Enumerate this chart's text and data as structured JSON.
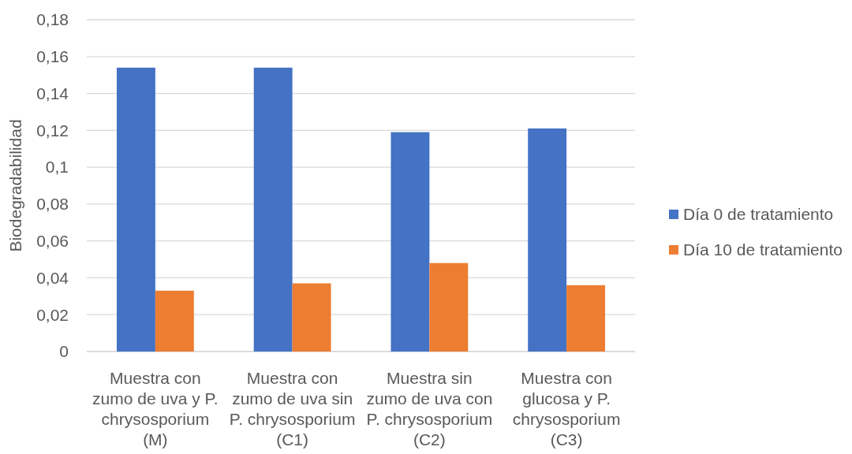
{
  "chart_data": {
    "type": "bar",
    "categories": [
      "Muestra con zumo de uva y P. chrysosporium (M)",
      "Muestra con zumo de uva sin P. chrysosporium (C1)",
      "Muestra sin zumo de uva con P. chrysosporium (C2)",
      "Muestra con glucosa y P. chrysosporium (C3)"
    ],
    "series": [
      {
        "name": "Día 0 de tratamiento",
        "color": "#4472c4",
        "values": [
          0.154,
          0.154,
          0.119,
          0.121
        ]
      },
      {
        "name": "Día 10 de tratamiento",
        "color": "#ed7d31",
        "values": [
          0.033,
          0.037,
          0.048,
          0.036
        ]
      }
    ],
    "ylabel": "Biodegradabilidad",
    "ylim": [
      0,
      0.18
    ],
    "yticks": [
      0,
      {
        "value": 0.02,
        "label": "0,02"
      },
      {
        "value": 0.04,
        "label": "0,04"
      },
      {
        "value": 0.06,
        "label": "0,06"
      },
      {
        "value": 0.08,
        "label": "0,08"
      },
      {
        "value": 0.1,
        "label": "0,1"
      },
      {
        "value": 0.12,
        "label": "0,12"
      },
      {
        "value": 0.14,
        "label": "0,14"
      },
      {
        "value": 0.16,
        "label": "0,16"
      },
      {
        "value": 0.18,
        "label": "0,18"
      }
    ],
    "grid": "y",
    "legend": "right"
  }
}
